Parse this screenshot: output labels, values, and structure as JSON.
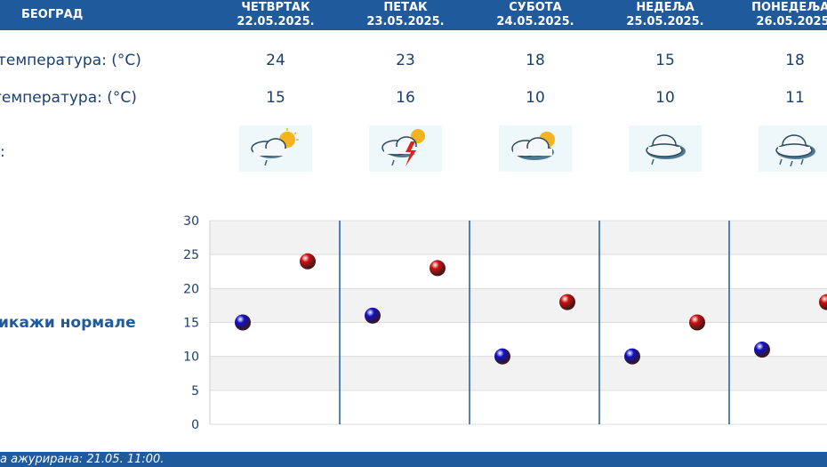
{
  "header": {
    "city": "БЕОГРАД",
    "days": [
      {
        "name": "ЧЕТВРТАК",
        "date": "22.05.2025."
      },
      {
        "name": "ПЕТАК",
        "date": "23.05.2025."
      },
      {
        "name": "СУБОТА",
        "date": "24.05.2025."
      },
      {
        "name": "НЕДЕЉА",
        "date": "25.05.2025."
      },
      {
        "name": "ПОНЕДЕЉАК",
        "date": "26.05.2025."
      }
    ]
  },
  "rows": {
    "max_label": "температура: (°C)",
    "min_label": "температура: (°C)",
    "icon_label": ":",
    "max": [
      "24",
      "23",
      "18",
      "15",
      "18"
    ],
    "min": [
      "15",
      "16",
      "10",
      "10",
      "11"
    ],
    "icons": [
      "sun-cloud-rain-icon",
      "sun-cloud-storm-icon",
      "sun-cloud-icon",
      "cloud-light-rain-icon",
      "cloud-rain-icon"
    ]
  },
  "normals_label": "икажи нормале",
  "footer": {
    "updated": "а ажурирана:  21.05. 11:00."
  },
  "chart_data": {
    "type": "scatter",
    "categories": [
      "22.05.2025.",
      "23.05.2025.",
      "24.05.2025.",
      "25.05.2025.",
      "26.05.2025."
    ],
    "series": [
      {
        "values": [
          15,
          16,
          10,
          10,
          11
        ],
        "color": "#1010c8"
      },
      {
        "values": [
          24,
          23,
          18,
          15,
          18
        ],
        "color": "#d01010"
      }
    ],
    "ylim": [
      0,
      30
    ],
    "yticks": [
      "0",
      "5",
      "10",
      "15",
      "20",
      "25",
      "30"
    ],
    "grid": true
  },
  "colors": {
    "header": "#1e5a9c",
    "text": "#1c3f6e",
    "grid_band": "#f2f2f2",
    "separator": "#1e5a9c"
  }
}
